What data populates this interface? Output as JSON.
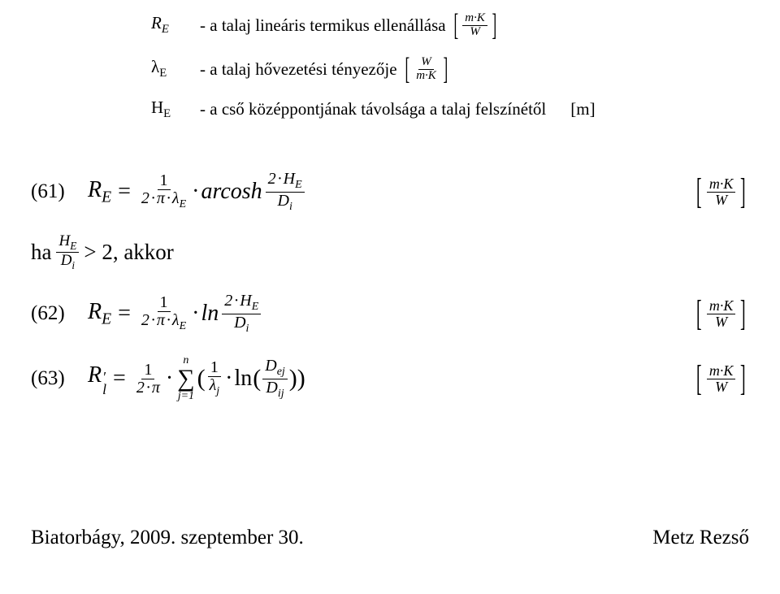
{
  "defs": {
    "row1": {
      "symbol_html": "R<span class='sub r-sub-italic'>E</span>",
      "text": "- a talaj lineáris termikus ellenállása",
      "unit_num": "m·K",
      "unit_den": "W"
    },
    "row2": {
      "symbol_html": "λ<span class='sub'>E</span>",
      "text": "- a talaj hővezetési tényezője",
      "unit_num": "W",
      "unit_den": "m·K"
    },
    "row3": {
      "symbol_html": "H<span class='sub'>E</span>",
      "text": "- a cső középpontjának távolsága a talaj felszínétől",
      "unit_plain": "[m]"
    }
  },
  "eq61": {
    "num_label": "(61)",
    "lhs_html": "R<span class='sub r-sub-italic'>E</span>",
    "f1_num": "1",
    "f1_den_html": "2<span class='mul'>·</span>π<span class='mul'>·</span>λ<span class='sub r-sub-italic'>E</span>",
    "func": "arcosh",
    "arg_num_html": "2<span class='mul'>·</span>H<span class='sub r-sub-italic'>E</span>",
    "arg_den_html": "D<span class='sub r-sub-italic'>i</span>",
    "unit_num": "m·K",
    "unit_den": "W"
  },
  "cond": {
    "ha": "ha",
    "frac_num_html": "H<span class='sub r-sub-italic'>E</span>",
    "frac_den_html": "D<span class='sub r-sub-italic'>i</span>",
    "tail": "> 2, akkor"
  },
  "eq62": {
    "num_label": "(62)",
    "lhs_html": "R<span class='sub r-sub-italic'>E</span>",
    "f1_num": "1",
    "f1_den_html": "2<span class='mul'>·</span>π<span class='mul'>·</span>λ<span class='sub r-sub-italic'>E</span>",
    "func": "ln",
    "arg_num_html": "2<span class='mul'>·</span>H<span class='sub r-sub-italic'>E</span>",
    "arg_den_html": "D<span class='sub r-sub-italic'>i</span>",
    "unit_num": "m·K",
    "unit_den": "W"
  },
  "eq63": {
    "num_label": "(63)",
    "lhs_html": "R<span class='dbl-sub'><span>′</span><span class='low'>l</span></span>",
    "f1_num": "1",
    "f1_den_html": "2<span class='mul'>·</span>π",
    "sum_top": "n",
    "sum_bot": "j=1",
    "inner_frac_num": "1",
    "inner_frac_den_html": "λ<span class='sub r-sub-italic'>j</span>",
    "ln": "ln",
    "inner_arg_num_html": "D<span class='sub r-sub-italic'>ej</span>",
    "inner_arg_den_html": "D<span class='sub r-sub-italic'>ij</span>",
    "unit_num": "m·K",
    "unit_den": "W"
  },
  "footer": {
    "left": "Biatorbágy, 2009. szeptember 30.",
    "right": "Metz Rezső"
  }
}
